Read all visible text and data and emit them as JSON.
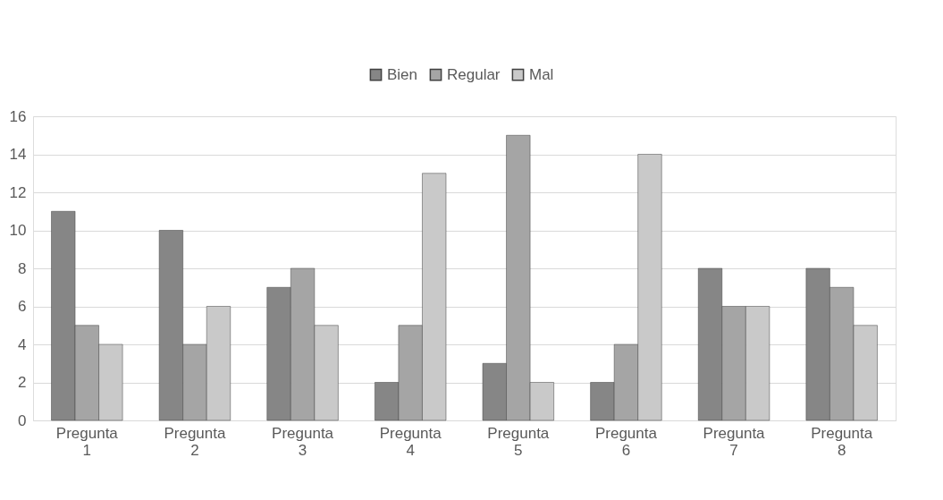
{
  "chart_data": {
    "type": "bar",
    "categories": [
      "Pregunta 1",
      "Pregunta 2",
      "Pregunta 3",
      "Pregunta 4",
      "Pregunta 5",
      "Pregunta 6",
      "Pregunta 7",
      "Pregunta 8"
    ],
    "series": [
      {
        "name": "Bien",
        "color": "#868686",
        "values": [
          11,
          10,
          7,
          2,
          3,
          2,
          8,
          8
        ]
      },
      {
        "name": "Regular",
        "color": "#a5a5a5",
        "values": [
          5,
          4,
          8,
          5,
          15,
          4,
          6,
          7
        ]
      },
      {
        "name": "Mal",
        "color": "#c9c9c9",
        "values": [
          4,
          6,
          5,
          13,
          2,
          14,
          6,
          5
        ]
      }
    ],
    "ylim": [
      0,
      16
    ],
    "yticks": [
      0,
      2,
      4,
      6,
      8,
      10,
      12,
      14,
      16
    ],
    "grid": "y",
    "legend": "top"
  }
}
